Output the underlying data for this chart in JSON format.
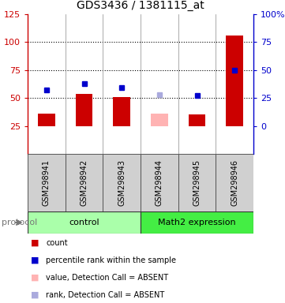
{
  "title": "GDS3436 / 1381115_at",
  "samples": [
    "GSM298941",
    "GSM298942",
    "GSM298943",
    "GSM298944",
    "GSM298945",
    "GSM298946"
  ],
  "bar_values": [
    36,
    54,
    51,
    36,
    35,
    106
  ],
  "bar_colors": [
    "#cc0000",
    "#cc0000",
    "#cc0000",
    "#ffb3b3",
    "#cc0000",
    "#cc0000"
  ],
  "dot_values": [
    57,
    63,
    59,
    53,
    52,
    75
  ],
  "dot_colors": [
    "#0000cc",
    "#0000cc",
    "#0000cc",
    "#aaaadd",
    "#0000cc",
    "#0000cc"
  ],
  "ylim_left": [
    0,
    125
  ],
  "yticks_left": [
    25,
    50,
    75,
    100,
    125
  ],
  "ytick_labels_right": [
    "0",
    "25",
    "50",
    "75",
    "100%"
  ],
  "dotted_lines": [
    50,
    75,
    100
  ],
  "control_color": "#aaffaa",
  "math2_color": "#44ee44",
  "left_axis_color": "#cc0000",
  "right_axis_color": "#0000cc",
  "bg_color": "#ffffff",
  "plot_bg": "#ffffff",
  "sample_bg": "#d0d0d0",
  "legend_items": [
    {
      "color": "#cc0000",
      "label": "count"
    },
    {
      "color": "#0000cc",
      "label": "percentile rank within the sample"
    },
    {
      "color": "#ffb3b3",
      "label": "value, Detection Call = ABSENT"
    },
    {
      "color": "#aaaadd",
      "label": "rank, Detection Call = ABSENT"
    }
  ],
  "bar_bottom": 25,
  "bar_width": 0.45
}
